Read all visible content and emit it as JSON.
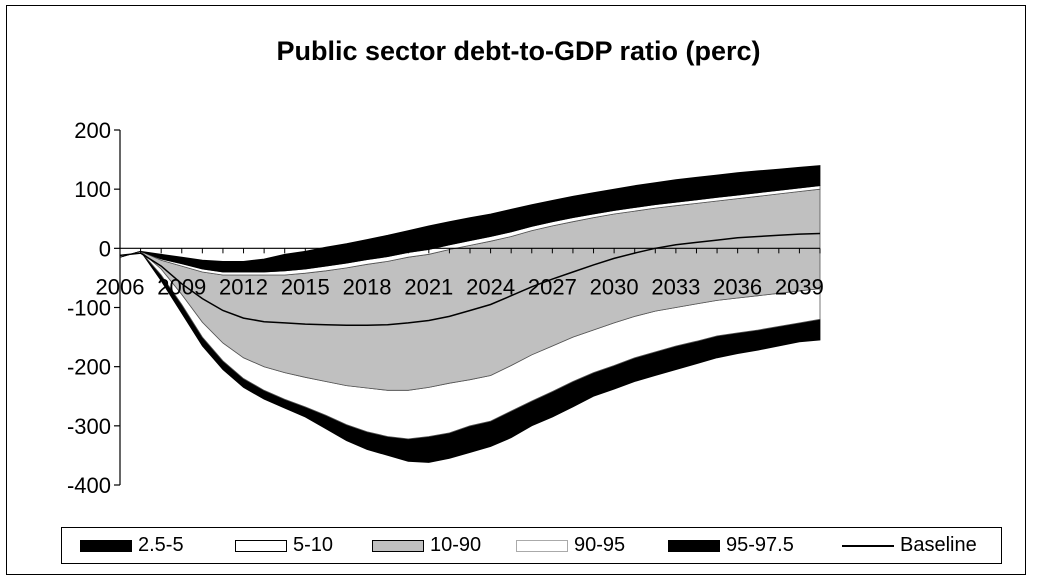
{
  "chart_data": {
    "type": "area",
    "title": "Public sector debt-to-GDP ratio (perc)",
    "xlabel": "",
    "ylabel": "",
    "ylim": [
      -400,
      200
    ],
    "yticks": [
      200,
      100,
      0,
      -100,
      -200,
      -300,
      -400
    ],
    "xlim": [
      2006,
      2040
    ],
    "xticks": [
      2006,
      2009,
      2012,
      2015,
      2018,
      2021,
      2024,
      2027,
      2030,
      2033,
      2036,
      2039
    ],
    "grid": false,
    "legend_position": "bottom",
    "x": [
      2006,
      2007,
      2008,
      2009,
      2010,
      2011,
      2012,
      2013,
      2014,
      2015,
      2016,
      2017,
      2018,
      2019,
      2020,
      2021,
      2022,
      2023,
      2024,
      2025,
      2026,
      2027,
      2028,
      2029,
      2030,
      2031,
      2032,
      2033,
      2034,
      2035,
      2036,
      2037,
      2038,
      2039,
      2040
    ],
    "series": [
      {
        "name": "2.5-5",
        "color": "#000000",
        "lower": [
          -15,
          -5,
          -55,
          -110,
          -165,
          -205,
          -235,
          -255,
          -270,
          -285,
          -305,
          -325,
          -340,
          -350,
          -360,
          -362,
          -355,
          -345,
          -335,
          -320,
          -300,
          -285,
          -268,
          -250,
          -238,
          -225,
          -215,
          -205,
          -195,
          -185,
          -178,
          -172,
          -165,
          -158,
          -155
        ],
        "upper": [
          -15,
          -5,
          -45,
          -95,
          -150,
          -190,
          -220,
          -240,
          -255,
          -268,
          -282,
          -298,
          -310,
          -318,
          -322,
          -318,
          -312,
          -300,
          -292,
          -275,
          -258,
          -242,
          -225,
          -210,
          -198,
          -185,
          -175,
          -165,
          -157,
          -148,
          -143,
          -138,
          -132,
          -126,
          -120
        ]
      },
      {
        "name": "5-10",
        "color": "#ffffff",
        "lower": [
          -15,
          -5,
          -45,
          -95,
          -150,
          -190,
          -220,
          -240,
          -255,
          -268,
          -282,
          -298,
          -310,
          -318,
          -322,
          -318,
          -312,
          -300,
          -292,
          -275,
          -258,
          -242,
          -225,
          -210,
          -198,
          -185,
          -175,
          -165,
          -157,
          -148,
          -143,
          -138,
          -132,
          -126,
          -120
        ],
        "upper": [
          -15,
          -5,
          -35,
          -78,
          -125,
          -160,
          -185,
          -200,
          -210,
          -218,
          -225,
          -232,
          -236,
          -240,
          -240,
          -235,
          -228,
          -222,
          -215,
          -198,
          -180,
          -165,
          -150,
          -138,
          -126,
          -115,
          -106,
          -100,
          -94,
          -88,
          -84,
          -80,
          -76,
          -72,
          -68
        ]
      },
      {
        "name": "10-90",
        "color": "#c0c0c0",
        "lower": [
          -15,
          -5,
          -35,
          -78,
          -125,
          -160,
          -185,
          -200,
          -210,
          -218,
          -225,
          -232,
          -236,
          -240,
          -240,
          -235,
          -228,
          -222,
          -215,
          -198,
          -180,
          -165,
          -150,
          -138,
          -126,
          -115,
          -106,
          -100,
          -94,
          -88,
          -84,
          -80,
          -76,
          -72,
          -68
        ],
        "upper": [
          -15,
          -5,
          -20,
          -30,
          -40,
          -45,
          -45,
          -45,
          -45,
          -42,
          -38,
          -33,
          -27,
          -22,
          -15,
          -10,
          -2,
          5,
          12,
          20,
          30,
          38,
          45,
          52,
          58,
          63,
          68,
          72,
          76,
          80,
          84,
          88,
          92,
          96,
          100
        ]
      },
      {
        "name": "90-95",
        "color": "#ffffff",
        "lower": [
          -15,
          -5,
          -20,
          -30,
          -40,
          -45,
          -45,
          -45,
          -45,
          -42,
          -38,
          -33,
          -27,
          -22,
          -15,
          -10,
          -2,
          5,
          12,
          20,
          30,
          38,
          45,
          52,
          58,
          63,
          68,
          72,
          76,
          80,
          84,
          88,
          92,
          96,
          100
        ],
        "upper": [
          -15,
          -5,
          -18,
          -26,
          -35,
          -40,
          -40,
          -40,
          -38,
          -35,
          -30,
          -25,
          -19,
          -14,
          -7,
          -2,
          6,
          13,
          20,
          28,
          37,
          45,
          52,
          58,
          64,
          69,
          74,
          78,
          82,
          86,
          90,
          94,
          98,
          102,
          106
        ]
      },
      {
        "name": "95-97.5",
        "color": "#000000",
        "lower": [
          -15,
          -5,
          -18,
          -26,
          -35,
          -40,
          -40,
          -40,
          -38,
          -35,
          -30,
          -25,
          -19,
          -14,
          -7,
          -2,
          6,
          13,
          20,
          28,
          37,
          45,
          52,
          58,
          64,
          69,
          74,
          78,
          82,
          86,
          90,
          94,
          98,
          102,
          106
        ],
        "upper": [
          -15,
          -5,
          -10,
          -15,
          -20,
          -22,
          -22,
          -18,
          -10,
          -5,
          2,
          8,
          15,
          22,
          30,
          38,
          45,
          52,
          58,
          66,
          74,
          81,
          88,
          94,
          100,
          106,
          111,
          116,
          120,
          124,
          128,
          131,
          134,
          137,
          140
        ]
      }
    ],
    "baseline": {
      "name": "Baseline",
      "values": [
        -12,
        -8,
        -30,
        -60,
        -85,
        -105,
        -118,
        -124,
        -126,
        -128,
        -129,
        -130,
        -130,
        -129,
        -126,
        -122,
        -115,
        -105,
        -95,
        -80,
        -65,
        -52,
        -40,
        -28,
        -17,
        -8,
        0,
        6,
        10,
        14,
        18,
        20,
        22,
        24,
        25
      ]
    }
  },
  "legend": [
    {
      "label": "2.5-5"
    },
    {
      "label": "5-10"
    },
    {
      "label": "10-90"
    },
    {
      "label": "90-95"
    },
    {
      "label": "95-97.5"
    },
    {
      "label": "Baseline"
    }
  ]
}
